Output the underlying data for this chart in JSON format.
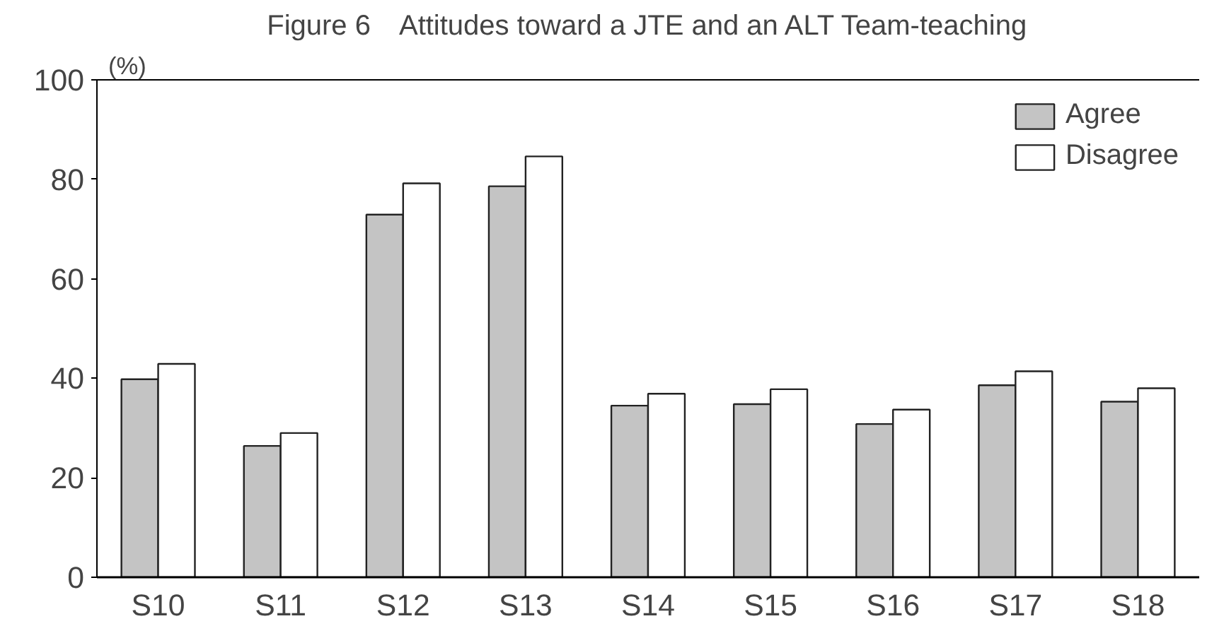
{
  "chart_data": {
    "type": "bar",
    "title": "Figure 6　Attitudes toward a JTE and an ALT Team-teaching",
    "ylabel": "(%)",
    "categories": [
      "S10",
      "S11",
      "S12",
      "S13",
      "S14",
      "S15",
      "S16",
      "S17",
      "S18"
    ],
    "series": [
      {
        "name": "Agree",
        "color": "#c4c4c4",
        "values": [
          39.8,
          26.4,
          72.9,
          78.6,
          34.5,
          34.8,
          30.8,
          38.6,
          35.3
        ]
      },
      {
        "name": "Disagree",
        "color": "#ffffff",
        "values": [
          42.9,
          29.0,
          79.2,
          84.6,
          36.9,
          37.8,
          33.7,
          41.4,
          38.0
        ]
      }
    ],
    "ylim": [
      0,
      100
    ],
    "yticks": [
      0,
      20,
      40,
      60,
      80,
      100
    ],
    "grid": false,
    "legend": "top right"
  }
}
